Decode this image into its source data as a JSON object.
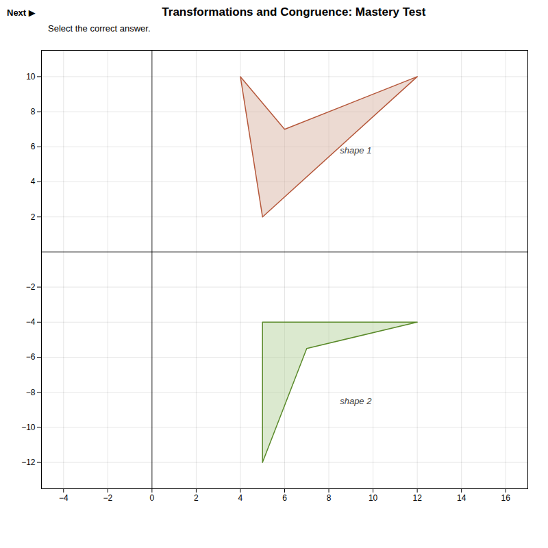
{
  "chart_data": {
    "type": "polygon",
    "title": "Transformations and Congruence: Mastery Test",
    "subtitle": "Select the correct answer.",
    "button_label": "Next  ▶",
    "series": [
      {
        "name": "shape 1",
        "color": "#b5573a",
        "fill_color": "#d9b5a5",
        "vertices": [
          [
            4,
            10
          ],
          [
            6,
            7
          ],
          [
            12,
            10
          ],
          [
            5,
            2
          ]
        ],
        "label_pos": [
          8.5,
          5.8
        ]
      },
      {
        "name": "shape 2",
        "color": "#5a8a2a",
        "fill_color": "#b8d4a0",
        "vertices": [
          [
            5,
            -4
          ],
          [
            12,
            -4
          ],
          [
            7,
            -5.5
          ],
          [
            5,
            -12
          ]
        ],
        "label_pos": [
          8.5,
          -8.5
        ]
      }
    ],
    "xlim": [
      -5,
      17
    ],
    "ylim": [
      -13.5,
      11.5
    ],
    "xticks": [
      -4,
      -2,
      0,
      2,
      4,
      6,
      8,
      10,
      12,
      14,
      16
    ],
    "yticks": [
      -12,
      -10,
      -8,
      -6,
      -4,
      -2,
      2,
      4,
      6,
      8,
      10
    ],
    "grid": true
  }
}
